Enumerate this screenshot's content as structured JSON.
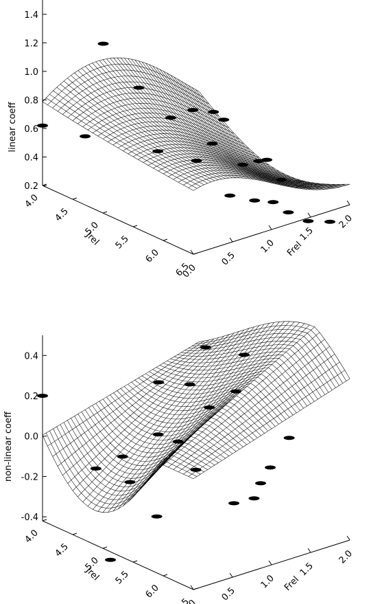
{
  "chart_data": [
    {
      "type": "surface",
      "ylabel": "linear coeff",
      "xlabel": "Frel",
      "depth_label": "Jrel",
      "z_ticks": [
        "0.2",
        "0.4",
        "0.6",
        "0.8",
        "1.0",
        "1.2",
        "1.4"
      ],
      "x_ticks": [
        "0.0",
        "0.5",
        "1.0",
        "1.5",
        "2.0"
      ],
      "depth_ticks": [
        "4.0",
        "4.5",
        "5.0",
        "5.5",
        "6.0",
        "6.5"
      ],
      "zlim": [
        0.2,
        1.5
      ],
      "xlim": [
        0.0,
        2.0
      ],
      "depth_lim": [
        4.0,
        6.5
      ],
      "grid": false,
      "surface": {
        "z_at_Frel0_Jrel4": 0.6,
        "z_peak": 0.97,
        "z_min": 0.32,
        "z_at_Frel2_Jrel6.5": 0.3
      },
      "points_z": [
        0.62,
        1.1,
        0.63,
        0.77,
        0.47,
        0.62,
        0.6,
        0.4,
        0.52,
        0.5,
        0.46,
        0.35,
        0.3,
        0.22,
        0.18,
        0.16,
        0.12,
        0.08,
        0.2,
        0.25,
        0.06
      ]
    },
    {
      "type": "surface",
      "ylabel": "non-linear coeff",
      "xlabel": "Frel",
      "depth_label": "Jrel",
      "z_ticks": [
        "-0.4",
        "-0.2",
        "0.0",
        "0.2",
        "0.4"
      ],
      "x_ticks": [
        "0.0",
        "0.5",
        "1.0",
        "1.5",
        "2.0"
      ],
      "depth_ticks": [
        "4.0",
        "4.5",
        "5.0",
        "5.5",
        "6.0",
        "6.5"
      ],
      "zlim": [
        -0.42,
        0.5
      ],
      "xlim": [
        0.0,
        2.0
      ],
      "depth_lim": [
        4.0,
        6.5
      ],
      "grid": false,
      "surface": {
        "z_at_Frel0_Jrel4": 0.2,
        "z_min": -0.28,
        "z_peak": 0.3
      },
      "points_z": [
        0.2,
        -0.1,
        -0.46,
        -0.18,
        -0.26,
        -0.1,
        0.0,
        -0.02,
        -0.09,
        0.2,
        0.17,
        0.1,
        -0.2,
        -0.19,
        -0.16,
        -0.12,
        0.15,
        0.3,
        0.26,
        -0.02
      ]
    }
  ]
}
